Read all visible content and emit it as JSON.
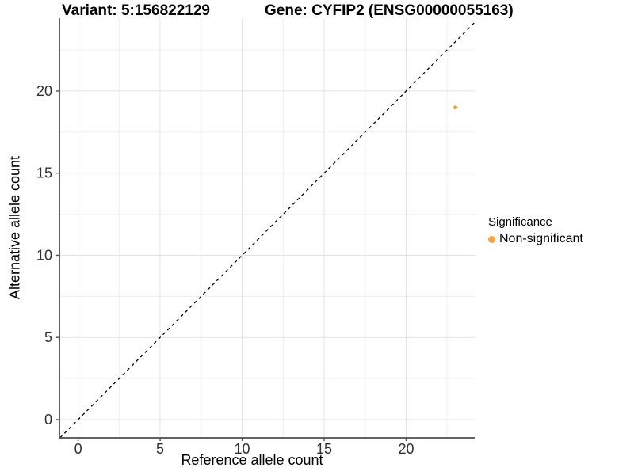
{
  "titles": {
    "variant": "Variant: 5:156822129",
    "gene": "Gene: CYFIP2 (ENSG00000055163)"
  },
  "chart_data": {
    "type": "scatter",
    "xlabel": "Reference allele count",
    "ylabel": "Alternative allele count",
    "xticks": [
      0,
      5,
      10,
      15,
      20
    ],
    "yticks": [
      0,
      5,
      10,
      15,
      20
    ],
    "xlim": [
      -1.14,
      24.18
    ],
    "ylim": [
      -1.11,
      24.43
    ],
    "minor_grid_step": 2.5,
    "grid": true,
    "identity_line": {
      "style": "dashed",
      "slope": 1,
      "intercept": 0,
      "color": "#000000"
    },
    "series": [
      {
        "name": "Non-significant",
        "color": "#F9A242",
        "points": [
          {
            "x": 23,
            "y": 19
          }
        ]
      }
    ],
    "legend": {
      "position": "right",
      "title": "Significance",
      "items": [
        {
          "label": "Non-significant",
          "color": "#F9A242"
        }
      ]
    }
  },
  "style_colors": {
    "axis_line": "#4D4D4D",
    "tick_label": "#303030",
    "grid_major": "#E3E3E3",
    "grid_minor": "#EFEFEF",
    "point": "#F9A242"
  }
}
